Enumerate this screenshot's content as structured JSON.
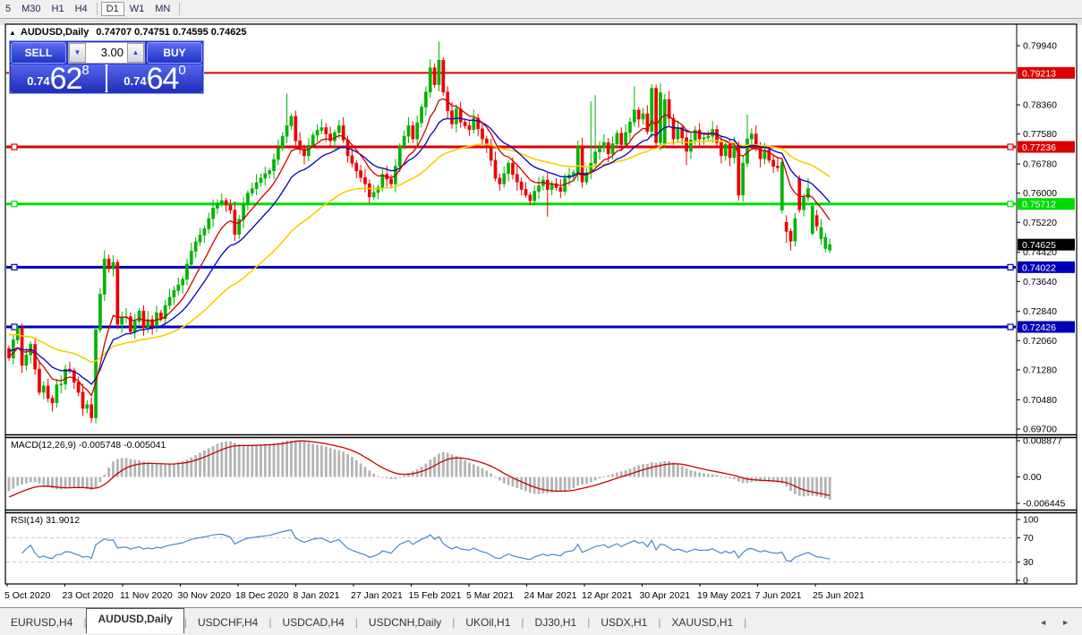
{
  "toolbar": {
    "timeframes": [
      {
        "label": "5",
        "active": false
      },
      {
        "label": "M30",
        "active": false
      },
      {
        "label": "H1",
        "active": false
      },
      {
        "label": "H4",
        "active": false
      },
      {
        "label": "|sep|",
        "active": false
      },
      {
        "label": "D1",
        "active": true
      },
      {
        "label": "W1",
        "active": false
      },
      {
        "label": "MN",
        "active": false
      },
      {
        "label": "|sep|",
        "active": false
      }
    ]
  },
  "title": {
    "symbol": "AUDUSD,Daily",
    "ohlc": "0.74707 0.74751 0.74595 0.74625"
  },
  "trade_panel": {
    "sell_label": "SELL",
    "buy_label": "BUY",
    "volume": "3.00",
    "sell_price": {
      "small": "0.74",
      "big": "62",
      "sup": "8"
    },
    "buy_price": {
      "small": "0.74",
      "big": "64",
      "sup": "0"
    },
    "down_arrow": "▼",
    "up_arrow": "▲"
  },
  "chart_data": {
    "type": "candlestick",
    "symbol": "AUDUSD",
    "timeframe": "Daily",
    "y_ticks": [
      "0.79940",
      "0.78360",
      "0.77580",
      "0.76780",
      "0.76000",
      "0.75220",
      "0.74420",
      "0.73640",
      "0.72840",
      "0.72060",
      "0.71280",
      "0.70480",
      "0.69700"
    ],
    "hlines": [
      {
        "price": 0.79213,
        "label": "0.79213",
        "color": "#dd0000",
        "lw": 2,
        "markers": false
      },
      {
        "price": 0.77236,
        "label": "0.77236",
        "color": "#dd0000",
        "lw": 3,
        "markers": true
      },
      {
        "price": 0.75712,
        "label": "0.75712",
        "color": "#00dc00",
        "lw": 3,
        "markers": true
      },
      {
        "price": 0.74022,
        "label": "0.74022",
        "color": "#0000bb",
        "lw": 3,
        "markers": true
      },
      {
        "price": 0.72426,
        "label": "0.72426",
        "color": "#0000bb",
        "lw": 3,
        "markers": true
      }
    ],
    "last_price": {
      "value": 0.74625,
      "label": "0.74625",
      "color": "#000000"
    },
    "dates": [
      "5 Oct 2020",
      "23 Oct 2020",
      "11 Nov 2020",
      "30 Nov 2020",
      "18 Dec 2020",
      "8 Jan 2021",
      "27 Jan 2021",
      "15 Feb 2021",
      "5 Mar 2021",
      "24 Mar 2021",
      "12 Apr 2021",
      "30 Apr 2021",
      "19 May 2021",
      "7 Jun 2021",
      "25 Jun 2021"
    ],
    "closes": [
      0.716,
      0.7208,
      0.724,
      0.714,
      0.7168,
      0.7196,
      0.713,
      0.7068,
      0.7085,
      0.7052,
      0.704,
      0.7088,
      0.709,
      0.713,
      0.7126,
      0.7095,
      0.7068,
      0.7025,
      0.7035,
      0.7,
      0.7235,
      0.733,
      0.7424,
      0.7398,
      0.7415,
      0.725,
      0.7268,
      0.727,
      0.723,
      0.7258,
      0.7285,
      0.724,
      0.7262,
      0.7245,
      0.728,
      0.7265,
      0.73,
      0.7322,
      0.734,
      0.7355,
      0.737,
      0.741,
      0.7445,
      0.747,
      0.7488,
      0.7505,
      0.7532,
      0.756,
      0.7572,
      0.758,
      0.7568,
      0.7555,
      0.749,
      0.753,
      0.757,
      0.76,
      0.7612,
      0.7628,
      0.764,
      0.7652,
      0.766,
      0.769,
      0.772,
      0.7752,
      0.778,
      0.7805,
      0.774,
      0.7718,
      0.77,
      0.7728,
      0.7755,
      0.7768,
      0.7775,
      0.7758,
      0.774,
      0.7762,
      0.778,
      0.7742,
      0.77,
      0.768,
      0.766,
      0.7642,
      0.7625,
      0.759,
      0.7602,
      0.7615,
      0.765,
      0.7638,
      0.7625,
      0.7672,
      0.7725,
      0.7752,
      0.778,
      0.7745,
      0.7788,
      0.783,
      0.787,
      0.7935,
      0.789,
      0.7955,
      0.787,
      0.782,
      0.7785,
      0.7825,
      0.779,
      0.778,
      0.777,
      0.78,
      0.7772,
      0.7745,
      0.773,
      0.7688,
      0.764,
      0.7625,
      0.7652,
      0.768,
      0.765,
      0.763,
      0.761,
      0.7595,
      0.758,
      0.7605,
      0.762,
      0.7635,
      0.761,
      0.7625,
      0.7615,
      0.7605,
      0.764,
      0.7648,
      0.7655,
      0.7725,
      0.763,
      0.7655,
      0.768,
      0.771,
      0.7722,
      0.7735,
      0.7705,
      0.7732,
      0.776,
      0.773,
      0.7762,
      0.779,
      0.7822,
      0.7798,
      0.7812,
      0.7765,
      0.788,
      0.7735,
      0.7868,
      0.785,
      0.78,
      0.7745,
      0.7775,
      0.7748,
      0.7712,
      0.7742,
      0.7768,
      0.7745,
      0.7748,
      0.7752,
      0.777,
      0.7735,
      0.77,
      0.773,
      0.7695,
      0.7727,
      0.7595,
      0.768,
      0.7745,
      0.7758,
      0.7725,
      0.7692,
      0.7715,
      0.7688,
      0.7672,
      0.7668,
      0.7682,
      0.7498,
      0.7472,
      0.7532,
      0.7556,
      0.7588,
      0.7612,
      0.7565,
      0.7512,
      0.7508,
      0.7482,
      0.74625
    ],
    "overrides": {
      "2": {
        "h": 0.7246
      },
      "10": {
        "l": 0.7017
      },
      "19": {
        "l": 0.6986
      },
      "52": {
        "l": 0.7472
      },
      "64": {
        "h": 0.7866
      },
      "83": {
        "l": 0.7574
      },
      "99": {
        "h": 0.8005
      },
      "120": {
        "l": 0.7568
      },
      "124": {
        "l": 0.7537
      },
      "134": {
        "h": 0.7845
      },
      "135": {
        "h": 0.7862
      },
      "144": {
        "h": 0.7885
      },
      "149": {
        "h": 0.789
      },
      "150": {
        "h": 0.7893
      },
      "151": {
        "o": 0.7733
      },
      "156": {
        "l": 0.7675
      },
      "168": {
        "l": 0.758
      },
      "170": {
        "h": 0.781
      },
      "178": {
        "o": 0.7555,
        "l": 0.7545,
        "h": 0.7695
      },
      "179": {
        "o": 0.7522,
        "l": 0.7467
      },
      "180": {
        "l": 0.7447
      },
      "182": {
        "o": 0.7638,
        "h": 0.7648
      },
      "184": {
        "h": 0.764
      },
      "185": {
        "o": 0.7492,
        "l": 0.7488
      },
      "186": {
        "o": 0.754
      },
      "187": {
        "o": 0.7478,
        "l": 0.7462
      },
      "188": {
        "o": 0.7452,
        "l": 0.7442
      },
      "189": {
        "o": 0.7448,
        "l": 0.744,
        "h": 0.7478
      }
    },
    "colors": {
      "up": "#00b400",
      "down": "#ee0000",
      "ma_fast": "#cc0000",
      "ma_mid": "#0000bb",
      "ma_slow": "#f5d000",
      "macd_hist": "#b4b4b4",
      "macd_signal": "#cc0000",
      "rsi": "#4787d0"
    }
  },
  "macd": {
    "label": "MACD(12,26,9)",
    "value1": "-0.005748",
    "value2": "-0.005041",
    "axis_top": "0.008877",
    "axis_zero": "0.00",
    "axis_bottom": "-0.006445"
  },
  "rsi": {
    "label": "RSI(14)",
    "value": "31.9012",
    "axis": [
      "100",
      "70",
      "30",
      "0"
    ]
  },
  "tabs": [
    {
      "label": "EURUSD,H4",
      "active": false
    },
    {
      "label": "AUDUSD,Daily",
      "active": true
    },
    {
      "label": "USDCHF,H4",
      "active": false
    },
    {
      "label": "USDCAD,H4",
      "active": false
    },
    {
      "label": "USDCNH,Daily",
      "active": false
    },
    {
      "label": "UKOil,H1",
      "active": false
    },
    {
      "label": "DJ30,H1",
      "active": false
    },
    {
      "label": "USDX,H1",
      "active": false
    },
    {
      "label": "XAUUSD,H1",
      "active": false
    }
  ],
  "tab_arrows": {
    "left": "◄",
    "right": "►"
  }
}
